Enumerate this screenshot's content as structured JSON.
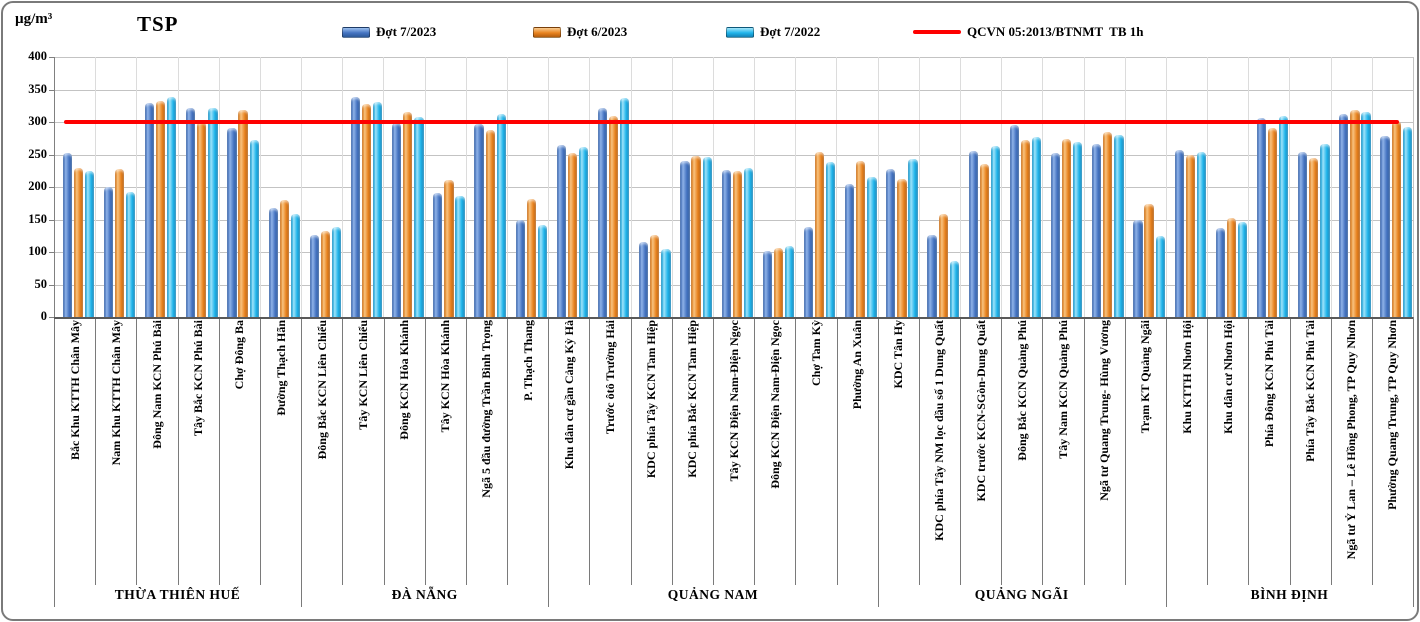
{
  "header": {
    "unit": "µg/m³",
    "title": "TSP"
  },
  "legend": {
    "items": [
      {
        "label": "Đợt 7/2023",
        "type": "bar",
        "color": "#4473C1"
      },
      {
        "label": "Đợt 6/2023",
        "type": "bar",
        "color": "#E8821E"
      },
      {
        "label": "Đợt 7/2022",
        "type": "bar",
        "color": "#1FB4EA"
      },
      {
        "label": "QCVN 05:2013/BTNMT  TB 1h",
        "type": "line",
        "color": "#FE0000"
      }
    ]
  },
  "chart_data": {
    "type": "bar",
    "title": "TSP",
    "ylabel": "µg/m³",
    "ylim": [
      0,
      400
    ],
    "yticks": [
      0,
      50,
      100,
      150,
      200,
      250,
      300,
      350,
      400
    ],
    "grid": true,
    "legend_position": "top",
    "reference_line": {
      "label": "QCVN 05:2013/BTNMT  TB 1h",
      "value": 300,
      "color": "#FE0000"
    },
    "categories": [
      "Bắc Khu KTTH Chân Mây",
      "Nam Khu KTTH Chân Mây",
      "Đông Nam KCN Phú Bài",
      "Tây Bắc KCN Phú Bài",
      "Chợ Đông Ba",
      "Đường Thạch Hãn",
      "Đông Bắc KCN Liên  Chiểu",
      "Tây KCN Liên  Chiểu",
      "Đông KCN Hòa Khánh",
      "Tây KCN Hòa Khánh",
      "Ngã 5 đầu đường Trần Bình Trọng",
      "P. Thạch Thang",
      "Khu dân cư gần Cảng Kỳ Hà",
      "Trước ôtô Trường Hải",
      "KDC phía Tây KCN Tam Hiệp",
      "KDC phía Bắc KCN Tam Hiệp",
      "Tây KCN Điện Nam-Điện Ngọc",
      "Đông KCN Điện Nam-Điện Ngọc",
      "Chợ Tam Kỳ",
      "Phường An Xuân",
      "KDC Tân Hy",
      "KDC phía Tây NM lọc dầu số 1 Dung Quất",
      "KDC trước KCN-SGòn-Dung Quất",
      "Đông Bắc KCN Quảng Phú",
      "Tây Nam KCN Quảng Phú",
      "Ngã tư Quang Trung- Hùng Vương",
      "Trạm KT Quảng Ngãi",
      "Khu KTTH Nhơn Hội",
      "Khu dân cư Nhơn Hội",
      "Phía Đông KCN Phú Tài",
      "Phía Tây Bắc KCN Phú Tài",
      "Ngã tư Ỷ Lan – Lê Hồng Phong, TP Quy Nhơn",
      "Phường Quang Trung, TP Quy Nhơn"
    ],
    "province_groups": [
      {
        "label": "THỪA THIÊN HUẾ",
        "count": 6
      },
      {
        "label": "ĐÀ NẴNG",
        "count": 6
      },
      {
        "label": "QUẢNG NAM",
        "count": 8
      },
      {
        "label": "QUẢNG NGÃI",
        "count": 7
      },
      {
        "label": "BÌNH ĐỊNH",
        "count": 6
      }
    ],
    "series": [
      {
        "name": "Đợt 7/2023",
        "color": "#4473C1",
        "values": [
          252,
          200,
          330,
          321,
          291,
          168,
          126,
          338,
          298,
          191,
          297,
          149,
          265,
          322,
          116,
          240,
          226,
          101,
          139,
          205,
          227,
          126,
          256,
          295,
          253,
          266,
          150,
          257,
          137,
          306,
          254,
          313,
          278
        ]
      },
      {
        "name": "Đợt 6/2023",
        "color": "#E8821E",
        "values": [
          230,
          228,
          333,
          300,
          319,
          180,
          132,
          327,
          316,
          211,
          287,
          182,
          252,
          310,
          127,
          248,
          225,
          106,
          254,
          240,
          213,
          158,
          235,
          273,
          274,
          284,
          174,
          250,
          153,
          291,
          244,
          318,
          301
        ]
      },
      {
        "name": "Đợt 7/2022",
        "color": "#1FB4EA",
        "values": [
          225,
          192,
          338,
          322,
          273,
          158,
          139,
          331,
          308,
          187,
          312,
          142,
          261,
          337,
          105,
          246,
          230,
          110,
          238,
          216,
          243,
          86,
          263,
          277,
          269,
          280,
          124,
          254,
          146,
          309,
          266,
          316,
          292
        ]
      }
    ]
  }
}
